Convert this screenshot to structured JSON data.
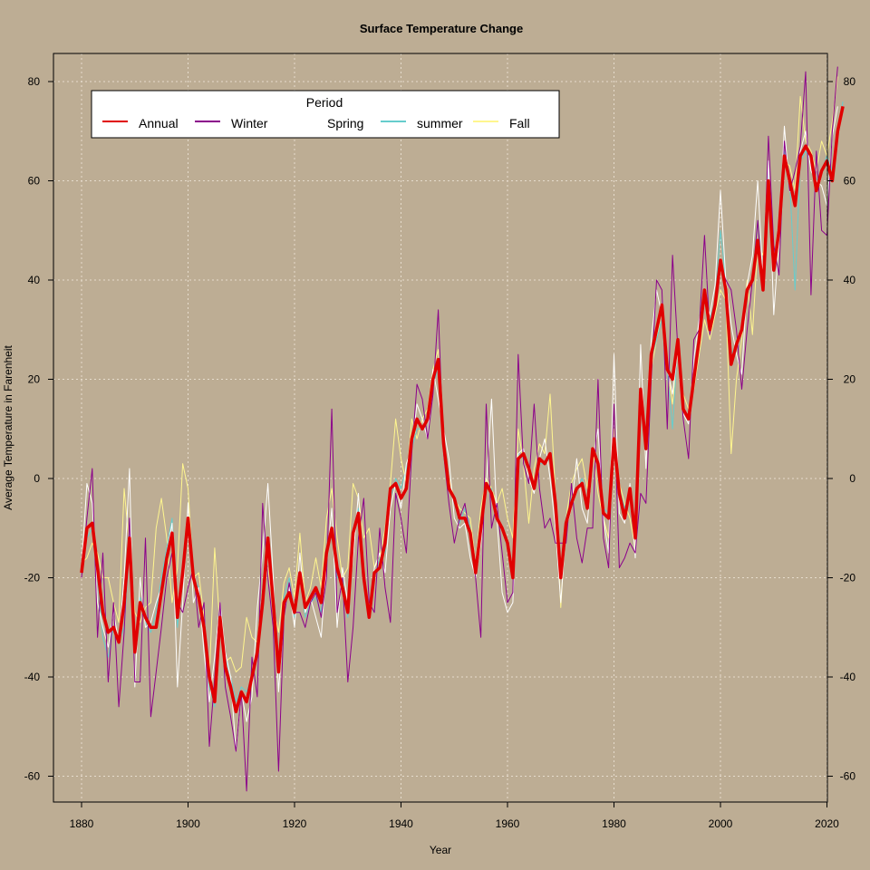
{
  "colors": {
    "background": "#BDAD94",
    "legend_bg": "#FFFFFF",
    "grid": "#E6DCCD",
    "annual": "#E00000",
    "winter": "#8B008B",
    "spring": "#FFFFFF",
    "summer": "#66CDCD",
    "fall": "#FFF68F"
  },
  "chart_data": {
    "type": "line",
    "title": "Surface Temperature Change",
    "xlabel": "Year",
    "ylabel": "Average Temperature in Farenheit",
    "xlim": [
      1880,
      2015
    ],
    "ylim": [
      -62,
      83
    ],
    "x_ticks": [
      1880,
      1900,
      1920,
      1940,
      1960,
      1980,
      2000,
      2020
    ],
    "y_ticks": [
      -60,
      -40,
      -20,
      0,
      20,
      40,
      60,
      80
    ],
    "grid": true,
    "secondary_y_axis": true,
    "legend": {
      "title": "Period",
      "position": "top-left",
      "entries": [
        "Annual",
        "Winter",
        "Spring",
        "summer",
        "Fall"
      ]
    },
    "x_start": 1880,
    "series": [
      {
        "name": "Annual",
        "color": "#E00000",
        "values": [
          -19,
          -10,
          -9,
          -18,
          -27,
          -31,
          -30,
          -33,
          -25,
          -12,
          -35,
          -25,
          -28,
          -30,
          -30,
          -23,
          -16,
          -11,
          -28,
          -19,
          -8,
          -20,
          -24,
          -30,
          -40,
          -45,
          -28,
          -38,
          -42,
          -47,
          -43,
          -45,
          -40,
          -35,
          -25,
          -12,
          -25,
          -39,
          -25,
          -23,
          -27,
          -19,
          -26,
          -24,
          -22,
          -25,
          -15,
          -10,
          -18,
          -22,
          -27,
          -11,
          -7,
          -20,
          -28,
          -19,
          -18,
          -13,
          -2,
          -1,
          -4,
          -2,
          8,
          12,
          10,
          12,
          20,
          24,
          7,
          -2,
          -4,
          -8,
          -8,
          -11,
          -19,
          -10,
          -1,
          -3,
          -8,
          -10,
          -13,
          -20,
          4,
          5,
          2,
          -2,
          4,
          3,
          5,
          -5,
          -20,
          -9,
          -5,
          -2,
          -1,
          -6,
          6,
          3,
          -7,
          -8,
          8,
          -3,
          -8,
          -2,
          -12,
          18,
          6,
          25,
          30,
          35,
          22,
          20,
          28,
          14,
          12,
          20,
          28,
          38,
          30,
          35,
          44,
          38,
          23,
          27,
          30,
          38,
          40,
          48,
          38,
          60,
          42,
          50,
          65,
          60,
          55,
          65,
          67,
          65,
          58,
          62,
          64,
          60,
          70,
          75
        ]
      },
      {
        "name": "Winter",
        "color": "#8B008B",
        "values": [
          -20,
          -8,
          2,
          -32,
          -15,
          -41,
          -25,
          -46,
          -31,
          -8,
          -41,
          -41,
          -12,
          -48,
          -39,
          -30,
          -20,
          -15,
          -25,
          -27,
          -22,
          -18,
          -30,
          -25,
          -54,
          -40,
          -25,
          -42,
          -48,
          -55,
          -43,
          -63,
          -36,
          -44,
          -5,
          -20,
          -30,
          -59,
          -28,
          -21,
          -27,
          -27,
          -30,
          -25,
          -23,
          -28,
          -20,
          14,
          -27,
          -20,
          -41,
          -30,
          -12,
          -4,
          -25,
          -27,
          -10,
          -22,
          -29,
          -3,
          -8,
          -15,
          5,
          19,
          16,
          8,
          17,
          34,
          5,
          -5,
          -13,
          -8,
          -5,
          -12,
          -20,
          -32,
          15,
          -10,
          -5,
          -15,
          -25,
          -23,
          25,
          3,
          -1,
          15,
          -2,
          -10,
          -8,
          -13,
          -13,
          -13,
          -1,
          -12,
          -17,
          -10,
          -10,
          20,
          -12,
          -18,
          15,
          -18,
          -16,
          -13,
          -15,
          -3,
          -5,
          20,
          40,
          38,
          10,
          45,
          26,
          12,
          4,
          28,
          30,
          49,
          29,
          35,
          43,
          40,
          38,
          30,
          18,
          30,
          40,
          52,
          38,
          69,
          47,
          41,
          68,
          58,
          62,
          67,
          82,
          37,
          66,
          50,
          49,
          70,
          83
        ]
      },
      {
        "name": "Spring",
        "color": "#FFFFFF",
        "values": [
          -18,
          -1,
          -5,
          -25,
          -30,
          -34,
          -27,
          -33,
          -20,
          2,
          -42,
          -20,
          -30,
          -29,
          -25,
          -22,
          -15,
          -9,
          -42,
          -25,
          -5,
          -25,
          -22,
          -35,
          -45,
          -36,
          -25,
          -35,
          -40,
          -55,
          -43,
          -49,
          -44,
          -26,
          -15,
          -1,
          -20,
          -43,
          -27,
          -22,
          -30,
          -15,
          -27,
          -24,
          -28,
          -32,
          -17,
          -6,
          -30,
          -18,
          -25,
          -16,
          -3,
          -20,
          -27,
          -18,
          -15,
          -19,
          -6,
          -1,
          -6,
          3,
          6,
          15,
          12,
          8,
          22,
          16,
          10,
          4,
          -8,
          -10,
          -9,
          -16,
          -20,
          -13,
          -2,
          16,
          -8,
          -23,
          -27,
          -25,
          5,
          6,
          0,
          -3,
          4,
          8,
          0,
          -10,
          -25,
          -10,
          -6,
          4,
          -6,
          -9,
          4,
          10,
          -8,
          -15,
          25,
          -7,
          -9,
          -1,
          -16,
          27,
          2,
          28,
          38,
          33,
          22,
          17,
          26,
          13,
          11,
          24,
          32,
          37,
          33,
          39,
          58,
          40,
          31,
          25,
          21,
          39,
          45,
          60,
          40,
          64,
          33,
          48,
          71,
          58,
          57,
          66,
          70,
          62,
          60,
          59,
          55,
          69,
          75
        ]
      },
      {
        "name": "summer",
        "color": "#66CDCD",
        "values": [
          -17,
          -12,
          -10,
          -20,
          -32,
          -36,
          -30,
          -33,
          -30,
          -14,
          -35,
          -24,
          -29,
          -31,
          -27,
          -20,
          -14,
          -8,
          -30,
          -20,
          -8,
          -20,
          -22,
          -32,
          -42,
          -46,
          -30,
          -36,
          -40,
          -45,
          -42,
          -43,
          -40,
          -35,
          -22,
          -12,
          -24,
          -38,
          -24,
          -20,
          -28,
          -20,
          -28,
          -25,
          -24,
          -27,
          -15,
          -10,
          -20,
          -20,
          -28,
          -12,
          -6,
          -20,
          -26,
          -20,
          -16,
          -15,
          -4,
          0,
          -2,
          2,
          6,
          10,
          10,
          12,
          19,
          22,
          9,
          -2,
          -5,
          -9,
          -6,
          -10,
          -17,
          -8,
          -2,
          -2,
          -8,
          -10,
          -14,
          -18,
          5,
          4,
          2,
          -1,
          3,
          3,
          4,
          -5,
          -18,
          -8,
          -4,
          -2,
          0,
          -5,
          5,
          3,
          -6,
          -7,
          6,
          -2,
          -6,
          -3,
          -10,
          15,
          7,
          24,
          28,
          32,
          22,
          10,
          28,
          14,
          12,
          22,
          28,
          38,
          32,
          36,
          50,
          40,
          25,
          27,
          30,
          38,
          40,
          52,
          40,
          62,
          42,
          50,
          66,
          60,
          38,
          64,
          66,
          64,
          60,
          62,
          65,
          62,
          70,
          76
        ]
      },
      {
        "name": "Fall",
        "color": "#FFF68F",
        "values": [
          -17,
          -16,
          -13,
          -15,
          -20,
          -20,
          -25,
          -29,
          -2,
          -14,
          -27,
          -29,
          -26,
          -25,
          -10,
          -4,
          -12,
          -25,
          -18,
          3,
          -2,
          -20,
          -19,
          -28,
          -40,
          -14,
          -30,
          -37,
          -36,
          -39,
          -38,
          -28,
          -32,
          -33,
          -22,
          -18,
          -26,
          -31,
          -21,
          -18,
          -24,
          -11,
          -25,
          -22,
          -16,
          -22,
          -8,
          -2,
          -12,
          -20,
          -18,
          -1,
          -4,
          -12,
          -10,
          -18,
          -16,
          -10,
          -1,
          12,
          4,
          -1,
          12,
          8,
          12,
          14,
          22,
          26,
          8,
          0,
          -4,
          -6,
          -7,
          -8,
          -17,
          -6,
          0,
          -2,
          -5,
          -2,
          -8,
          -12,
          10,
          3,
          -9,
          2,
          7,
          5,
          17,
          -3,
          -26,
          -8,
          -1,
          2,
          4,
          -2,
          6,
          -3,
          -8,
          -12,
          10,
          -1,
          -5,
          -8,
          -14,
          15,
          8,
          22,
          28,
          34,
          22,
          15,
          26,
          17,
          14,
          18,
          25,
          32,
          28,
          33,
          38,
          36,
          5,
          20,
          28,
          40,
          29,
          47,
          45,
          58,
          42,
          49,
          64,
          63,
          58,
          77,
          68,
          66,
          62,
          68,
          65,
          72,
          81
        ]
      }
    ]
  }
}
